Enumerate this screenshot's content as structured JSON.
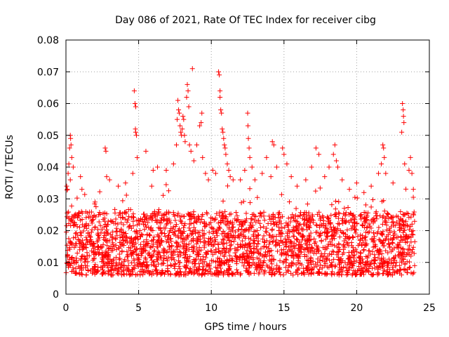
{
  "chart_data": {
    "type": "scatter",
    "title": "Day 086 of 2021, Rate Of TEC Index for receiver cibg",
    "xlabel": "GPS time / hours",
    "ylabel": "ROTI / TECUs",
    "xlim": [
      0,
      25
    ],
    "ylim": [
      0,
      0.08
    ],
    "xticks": [
      "0",
      "5",
      "10",
      "15",
      "20",
      "25"
    ],
    "yticks": [
      "0",
      "0.01",
      "0.02",
      "0.03",
      "0.04",
      "0.05",
      "0.06",
      "0.07",
      "0.08"
    ],
    "grid": true,
    "marker": "+",
    "color": "#ff0000",
    "data_extent_hours": [
      0,
      24
    ],
    "baseline_range": [
      0.006,
      0.025
    ],
    "series": [
      {
        "points": [
          [
            0.05,
            0.034
          ],
          [
            0.1,
            0.033
          ],
          [
            0.15,
            0.038
          ],
          [
            0.2,
            0.041
          ],
          [
            0.25,
            0.046
          ],
          [
            0.3,
            0.05
          ],
          [
            0.32,
            0.049
          ],
          [
            0.35,
            0.047
          ],
          [
            0.4,
            0.043
          ],
          [
            0.5,
            0.04
          ],
          [
            0.3,
            0.036
          ],
          [
            1.0,
            0.037
          ],
          [
            1.1,
            0.033
          ],
          [
            2.0,
            0.029
          ],
          [
            2.7,
            0.046
          ],
          [
            2.75,
            0.045
          ],
          [
            2.8,
            0.037
          ],
          [
            3.0,
            0.036
          ],
          [
            3.6,
            0.034
          ],
          [
            4.1,
            0.035
          ],
          [
            4.6,
            0.038
          ],
          [
            4.7,
            0.064
          ],
          [
            4.75,
            0.06
          ],
          [
            4.8,
            0.059
          ],
          [
            4.78,
            0.052
          ],
          [
            4.8,
            0.051
          ],
          [
            4.85,
            0.05
          ],
          [
            4.9,
            0.043
          ],
          [
            5.5,
            0.045
          ],
          [
            5.9,
            0.034
          ],
          [
            6.0,
            0.039
          ],
          [
            6.3,
            0.04
          ],
          [
            6.9,
            0.039
          ],
          [
            7.4,
            0.041
          ],
          [
            7.6,
            0.047
          ],
          [
            7.65,
            0.055
          ],
          [
            7.7,
            0.061
          ],
          [
            7.75,
            0.058
          ],
          [
            7.8,
            0.057
          ],
          [
            7.85,
            0.053
          ],
          [
            7.9,
            0.051
          ],
          [
            7.95,
            0.05
          ],
          [
            8.0,
            0.052
          ],
          [
            8.05,
            0.056
          ],
          [
            8.1,
            0.055
          ],
          [
            8.15,
            0.05
          ],
          [
            8.2,
            0.048
          ],
          [
            8.3,
            0.062
          ],
          [
            8.35,
            0.066
          ],
          [
            8.4,
            0.064
          ],
          [
            8.45,
            0.059
          ],
          [
            8.5,
            0.047
          ],
          [
            8.6,
            0.045
          ],
          [
            8.7,
            0.071
          ],
          [
            8.8,
            0.042
          ],
          [
            9.0,
            0.047
          ],
          [
            9.2,
            0.053
          ],
          [
            9.3,
            0.054
          ],
          [
            9.35,
            0.057
          ],
          [
            9.4,
            0.043
          ],
          [
            9.6,
            0.038
          ],
          [
            9.8,
            0.036
          ],
          [
            10.1,
            0.039
          ],
          [
            10.3,
            0.038
          ],
          [
            10.5,
            0.07
          ],
          [
            10.55,
            0.069
          ],
          [
            10.6,
            0.064
          ],
          [
            10.6,
            0.062
          ],
          [
            10.65,
            0.058
          ],
          [
            10.7,
            0.057
          ],
          [
            10.75,
            0.052
          ],
          [
            10.8,
            0.051
          ],
          [
            10.85,
            0.049
          ],
          [
            10.9,
            0.047
          ],
          [
            10.95,
            0.046
          ],
          [
            11.0,
            0.044
          ],
          [
            11.1,
            0.041
          ],
          [
            11.2,
            0.039
          ],
          [
            11.3,
            0.037
          ],
          [
            11.5,
            0.036
          ],
          [
            12.0,
            0.036
          ],
          [
            12.3,
            0.039
          ],
          [
            12.5,
            0.057
          ],
          [
            12.52,
            0.053
          ],
          [
            12.55,
            0.049
          ],
          [
            12.6,
            0.046
          ],
          [
            12.65,
            0.043
          ],
          [
            12.8,
            0.04
          ],
          [
            13.0,
            0.036
          ],
          [
            13.5,
            0.038
          ],
          [
            13.8,
            0.043
          ],
          [
            14.1,
            0.037
          ],
          [
            14.2,
            0.048
          ],
          [
            14.3,
            0.047
          ],
          [
            14.5,
            0.04
          ],
          [
            14.9,
            0.046
          ],
          [
            15.0,
            0.044
          ],
          [
            15.2,
            0.041
          ],
          [
            15.5,
            0.037
          ],
          [
            15.9,
            0.034
          ],
          [
            16.5,
            0.036
          ],
          [
            16.9,
            0.04
          ],
          [
            17.2,
            0.046
          ],
          [
            17.4,
            0.044
          ],
          [
            17.8,
            0.037
          ],
          [
            18.1,
            0.04
          ],
          [
            18.4,
            0.044
          ],
          [
            18.5,
            0.047
          ],
          [
            18.6,
            0.042
          ],
          [
            18.7,
            0.04
          ],
          [
            19.0,
            0.036
          ],
          [
            19.5,
            0.033
          ],
          [
            20.0,
            0.035
          ],
          [
            20.5,
            0.032
          ],
          [
            21.0,
            0.034
          ],
          [
            21.5,
            0.038
          ],
          [
            21.7,
            0.041
          ],
          [
            21.8,
            0.047
          ],
          [
            21.85,
            0.046
          ],
          [
            21.9,
            0.043
          ],
          [
            22.0,
            0.038
          ],
          [
            22.5,
            0.035
          ],
          [
            23.1,
            0.051
          ],
          [
            23.15,
            0.06
          ],
          [
            23.2,
            0.058
          ],
          [
            23.22,
            0.056
          ],
          [
            23.25,
            0.054
          ],
          [
            23.3,
            0.041
          ],
          [
            23.6,
            0.039
          ],
          [
            23.7,
            0.043
          ],
          [
            23.8,
            0.038
          ],
          [
            23.9,
            0.033
          ]
        ]
      }
    ]
  }
}
